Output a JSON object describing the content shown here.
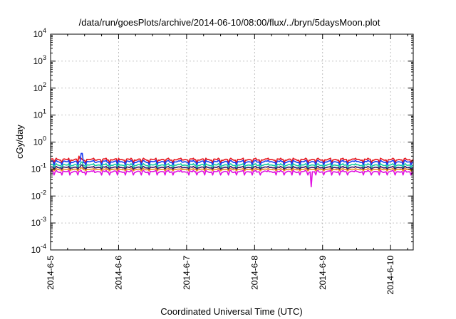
{
  "chart_data": {
    "type": "line",
    "title": "/data/run/goesPlots/archive/2014-06-10/08:00/flux/../bryn/5daysMoon.plot",
    "xlabel": "Coordinated Universal Time (UTC)",
    "ylabel": "cGy/day",
    "yscale": "log",
    "ylim": [
      0.0001,
      10000
    ],
    "xlim": [
      "2014-06-05",
      "2014-06-10 08:00"
    ],
    "grid": true,
    "legend": "none",
    "y_ticks": [
      {
        "base": "10",
        "exp": "-4",
        "value": 0.0001
      },
      {
        "base": "10",
        "exp": "-3",
        "value": 0.001
      },
      {
        "base": "10",
        "exp": "-2",
        "value": 0.01
      },
      {
        "base": "10",
        "exp": "-1",
        "value": 0.1
      },
      {
        "base": "10",
        "exp": "0",
        "value": 1
      },
      {
        "base": "10",
        "exp": "1",
        "value": 10
      },
      {
        "base": "10",
        "exp": "2",
        "value": 100
      },
      {
        "base": "10",
        "exp": "3",
        "value": 1000
      },
      {
        "base": "10",
        "exp": "4",
        "value": 10000
      }
    ],
    "x_ticks": [
      "2014-6-5",
      "2014-6-6",
      "2014-6-7",
      "2014-6-8",
      "2014-6-9",
      "2014-6-10"
    ],
    "series": [
      {
        "color": "#e8141a",
        "base": 0.24,
        "dip": 0.17,
        "spike": 0.3,
        "spike_x": "2014-06-05 10:00"
      },
      {
        "color": "#1a3cf0",
        "base": 0.2,
        "dip": 0.14,
        "spike": 0.38,
        "spike_x": "2014-06-05 11:00"
      },
      {
        "color": "#16c8a0",
        "base": 0.15,
        "dip": 0.11,
        "spike": 0.18,
        "spike_x": "2014-06-05 11:00"
      },
      {
        "color": "#3a1a6a",
        "base": 0.12,
        "dip": 0.095,
        "spike": 0.14,
        "spike_x": "2014-06-05 11:00"
      },
      {
        "color": "#f09020",
        "base": 0.1,
        "dip": 0.085,
        "spike": 0.11,
        "spike_x": "2014-06-05 11:00"
      },
      {
        "color": "#e010e0",
        "base": 0.085,
        "dip": 0.06,
        "spike": 0.022,
        "spike_x": "2014-06-08 20:00"
      }
    ]
  }
}
